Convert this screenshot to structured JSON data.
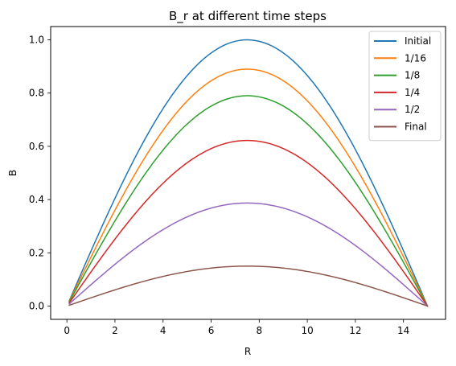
{
  "chart_data": {
    "type": "line",
    "title": "B_r at different time steps",
    "xlabel": "R",
    "ylabel": "B",
    "xlim": [
      -0.675,
      15.75
    ],
    "ylim": [
      -0.05,
      1.05
    ],
    "x_range": [
      0.1,
      15.0
    ],
    "x_ticks": [
      0,
      2,
      4,
      6,
      8,
      10,
      12,
      14
    ],
    "y_ticks": [
      0.0,
      0.2,
      0.4,
      0.6,
      0.8,
      1.0
    ],
    "x_tick_labels": [
      "0",
      "2",
      "4",
      "6",
      "8",
      "10",
      "12",
      "14"
    ],
    "y_tick_labels": [
      "0.0",
      "0.2",
      "0.4",
      "0.6",
      "0.8",
      "1.0"
    ],
    "grid": false,
    "legend_position": "top-right",
    "series": [
      {
        "name": "Initial",
        "color": "#1f77b4",
        "peak": 1.0,
        "peak_x": 7.5,
        "start_y": 0.02,
        "end_y": 0.0
      },
      {
        "name": "1/16",
        "color": "#ff7f0e",
        "peak": 0.89,
        "peak_x": 7.5,
        "start_y": 0.018,
        "end_y": 0.0
      },
      {
        "name": "1/8",
        "color": "#2ca02c",
        "peak": 0.79,
        "peak_x": 7.5,
        "start_y": 0.016,
        "end_y": 0.0
      },
      {
        "name": "1/4",
        "color": "#d62728",
        "peak": 0.622,
        "peak_x": 7.5,
        "start_y": 0.012,
        "end_y": 0.0
      },
      {
        "name": "1/2",
        "color": "#9467bd",
        "peak": 0.387,
        "peak_x": 7.5,
        "start_y": 0.008,
        "end_y": 0.0
      },
      {
        "name": "Final",
        "color": "#8c564b",
        "peak": 0.15,
        "peak_x": 7.5,
        "start_y": 0.003,
        "end_y": 0.0
      }
    ]
  }
}
